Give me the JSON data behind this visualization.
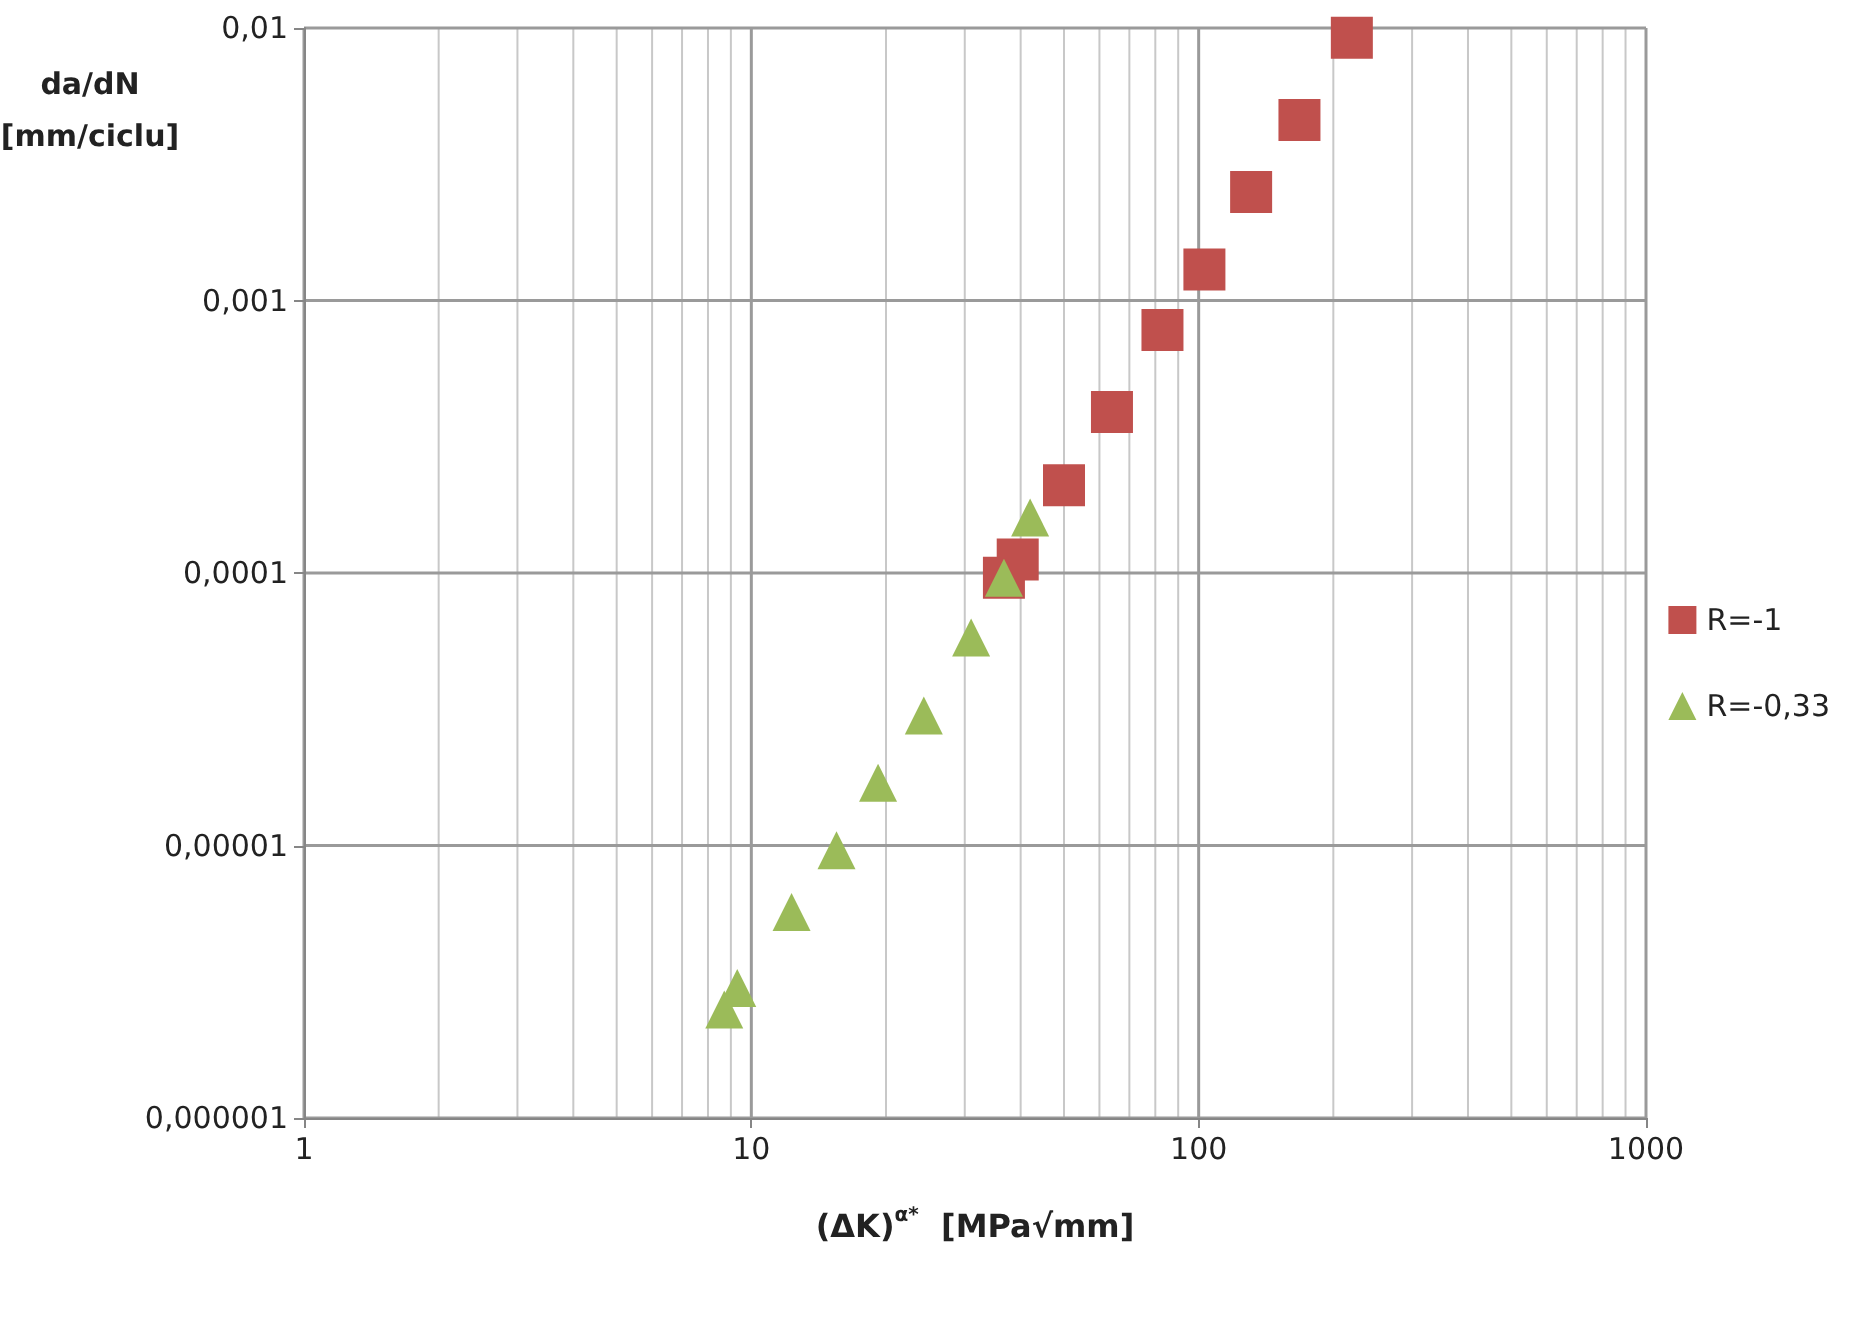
{
  "chart_data": {
    "type": "scatter",
    "xlabel": "(ΔK)$^{α*}$  [MPa√mm]",
    "ylabel": "da/dN\n[mm/ciclu]",
    "log": "xy",
    "grid": true,
    "legend": "right",
    "xlim": [
      1,
      1000
    ],
    "xticks": [
      1,
      {
        "value": 2,
        "label": null
      },
      {
        "value": 3,
        "label": null
      },
      {
        "value": 4,
        "label": null
      },
      {
        "value": 5,
        "label": null
      },
      {
        "value": 6,
        "label": null
      },
      {
        "value": 7,
        "label": null
      },
      {
        "value": 8,
        "label": null
      },
      {
        "value": 9,
        "label": null
      },
      10,
      {
        "value": 20,
        "label": null
      },
      {
        "value": 30,
        "label": null
      },
      {
        "value": 40,
        "label": null
      },
      {
        "value": 50,
        "label": null
      },
      {
        "value": 60,
        "label": null
      },
      {
        "value": 70,
        "label": null
      },
      {
        "value": 80,
        "label": null
      },
      {
        "value": 90,
        "label": null
      },
      100,
      {
        "value": 200,
        "label": null
      },
      {
        "value": 300,
        "label": null
      },
      {
        "value": 400,
        "label": null
      },
      {
        "value": 500,
        "label": null
      },
      {
        "value": 600,
        "label": null
      },
      {
        "value": 700,
        "label": null
      },
      {
        "value": 800,
        "label": null
      },
      {
        "value": 900,
        "label": null
      },
      1000
    ],
    "ylim": [
      1e-06,
      0.01
    ],
    "yticks": [
      {
        "value": 1e-06,
        "label": "0,000001"
      },
      {
        "value": 1e-05,
        "label": "0,00001"
      },
      {
        "value": 0.0001,
        "label": "0,0001"
      },
      {
        "value": 0.001,
        "label": "0,001"
      },
      {
        "value": 0.01,
        "label": "0,01"
      }
    ],
    "series": [
      {
        "name": "R=-1",
        "color": "#c0504d",
        "marker": "square",
        "x": [
          36.7,
          39.4,
          50,
          64,
          83,
          103,
          131,
          168,
          220
        ],
        "values": [
          9.6e-05,
          0.000112,
          0.00021,
          0.00039,
          0.00078,
          0.0013,
          0.0025,
          0.0046,
          0.0092
        ]
      },
      {
        "name": "R=-0,33",
        "color": "#9bbb59",
        "marker": "triangle",
        "x": [
          8.7,
          9.3,
          12.3,
          15.5,
          19.2,
          24.3,
          31,
          36.7,
          42
        ],
        "values": [
          2.5e-06,
          3e-06,
          5.7e-06,
          9.6e-06,
          1.7e-05,
          3e-05,
          5.8e-05,
          9.6e-05,
          0.00016
        ]
      }
    ]
  }
}
